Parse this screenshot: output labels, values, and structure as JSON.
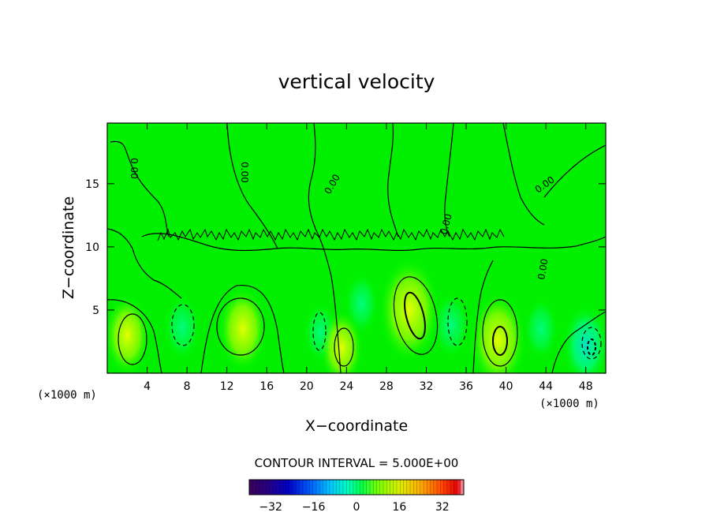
{
  "chart_data": {
    "type": "heatmap",
    "title": "vertical velocity",
    "xlabel": "X−coordinate",
    "ylabel": "Z−coordinate",
    "x_unit": "(×1000 m)",
    "z_unit": "(×1000 m)",
    "xlim": [
      0,
      50
    ],
    "zlim": [
      0,
      19.8
    ],
    "x_ticks": [
      4,
      8,
      12,
      16,
      20,
      24,
      28,
      32,
      36,
      40,
      44,
      48
    ],
    "z_ticks": [
      5,
      10,
      15
    ],
    "contour_interval_text": "CONTOUR INTERVAL = 5.000E+00",
    "contour_interval": 5,
    "contour_line_labels": [
      "0.00",
      "0.00",
      "0.00",
      "0.00",
      "0.00",
      "0.00"
    ],
    "colorbar": {
      "range": [
        -40,
        40
      ],
      "tick_values": [
        -32,
        -16,
        0,
        16,
        32
      ],
      "tick_labels": [
        "−32",
        "−16",
        "0",
        "16",
        "32"
      ]
    },
    "features": [
      {
        "x": 2.0,
        "z": 3.0,
        "value": 8,
        "sign": "updraft"
      },
      {
        "x": 7.5,
        "z": 3.6,
        "value": -4,
        "sign": "downdraft"
      },
      {
        "x": 13.6,
        "z": 3.5,
        "value": 9,
        "sign": "updraft"
      },
      {
        "x": 21.4,
        "z": 3.2,
        "value": -3,
        "sign": "downdraft"
      },
      {
        "x": 23.5,
        "z": 2.0,
        "value": 7,
        "sign": "updraft"
      },
      {
        "x": 25.5,
        "z": 5.5,
        "value": -3,
        "sign": "downdraft"
      },
      {
        "x": 30.3,
        "z": 5.0,
        "value": 14,
        "sign": "updraft"
      },
      {
        "x": 34.5,
        "z": 3.8,
        "value": -4,
        "sign": "downdraft"
      },
      {
        "x": 39.2,
        "z": 2.6,
        "value": 12,
        "sign": "updraft"
      },
      {
        "x": 43.5,
        "z": 3.5,
        "value": -3,
        "sign": "downdraft"
      },
      {
        "x": 48.0,
        "z": 2.2,
        "value": -8,
        "sign": "downdraft"
      }
    ],
    "grid": false,
    "legend": "bottom"
  }
}
